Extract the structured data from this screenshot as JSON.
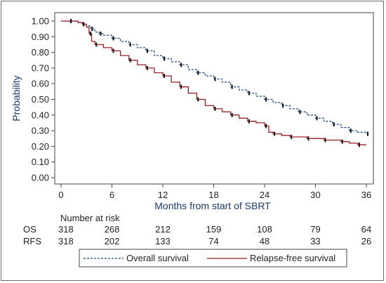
{
  "chart_data": {
    "type": "line",
    "title": "",
    "xlabel": "Months from start of SBRT",
    "ylabel": "Probability",
    "xlim": [
      0,
      36
    ],
    "ylim": [
      0,
      1
    ],
    "x_ticks": [
      0,
      6,
      12,
      18,
      24,
      30,
      36
    ],
    "y_ticks": [
      0.0,
      0.1,
      0.2,
      0.3,
      0.4,
      0.5,
      0.6,
      0.7,
      0.8,
      0.9,
      1.0
    ],
    "y_tick_labels": [
      "0.00",
      "0.10",
      "0.20",
      "0.30",
      "0.40",
      "0.50",
      "0.60",
      "0.70",
      "0.80",
      "0.90",
      "1.00"
    ],
    "grid": false,
    "series": [
      {
        "name": "Overall survival",
        "color": "#1f4e8c",
        "style": "dashed",
        "x": [
          0,
          1,
          2,
          2.5,
          3,
          3.5,
          4,
          4.5,
          5,
          6,
          7,
          8,
          9,
          10,
          11,
          12,
          13,
          14,
          15,
          16,
          17,
          18,
          19,
          20,
          21,
          22,
          23,
          24,
          25,
          26,
          27,
          28,
          29,
          30,
          31,
          32,
          33,
          34,
          35,
          36
        ],
        "y": [
          1.0,
          1.0,
          0.99,
          0.98,
          0.97,
          0.95,
          0.93,
          0.92,
          0.91,
          0.89,
          0.87,
          0.85,
          0.83,
          0.81,
          0.78,
          0.76,
          0.74,
          0.72,
          0.69,
          0.67,
          0.65,
          0.63,
          0.61,
          0.58,
          0.56,
          0.54,
          0.52,
          0.5,
          0.48,
          0.46,
          0.44,
          0.42,
          0.4,
          0.38,
          0.36,
          0.34,
          0.32,
          0.3,
          0.29,
          0.28
        ]
      },
      {
        "name": "Relapse-free survival",
        "color": "#9a1f24",
        "style": "solid",
        "x": [
          0,
          1,
          2,
          2.5,
          3,
          3.3,
          3.6,
          4,
          5,
          6,
          7,
          8,
          9,
          10,
          11,
          12,
          13,
          14,
          15,
          16,
          17,
          18,
          19,
          20,
          21,
          22,
          23,
          24,
          24.5,
          25,
          26,
          27,
          28,
          29,
          30,
          31,
          32,
          33,
          34,
          35,
          36
        ],
        "y": [
          1.0,
          1.0,
          0.99,
          0.98,
          0.96,
          0.92,
          0.87,
          0.85,
          0.83,
          0.81,
          0.78,
          0.75,
          0.72,
          0.7,
          0.67,
          0.65,
          0.61,
          0.58,
          0.54,
          0.5,
          0.46,
          0.44,
          0.42,
          0.4,
          0.38,
          0.36,
          0.35,
          0.33,
          0.29,
          0.28,
          0.27,
          0.26,
          0.26,
          0.25,
          0.25,
          0.24,
          0.24,
          0.23,
          0.22,
          0.21,
          0.21
        ]
      }
    ],
    "risk_table": {
      "header": "Number at risk",
      "rows": [
        {
          "label": "OS",
          "values": [
            "318",
            "268",
            "212",
            "159",
            "108",
            "79",
            "64"
          ]
        },
        {
          "label": "RFS",
          "values": [
            "318",
            "202",
            "133",
            "74",
            "48",
            "33",
            "26"
          ]
        }
      ]
    },
    "legend": {
      "placement": "bottom",
      "entries": [
        {
          "label": "Overall survival",
          "style": "dashed",
          "color": "#1f4e8c"
        },
        {
          "label": "Relapse-free survival",
          "style": "solid",
          "color": "#9a1f24"
        }
      ]
    }
  }
}
